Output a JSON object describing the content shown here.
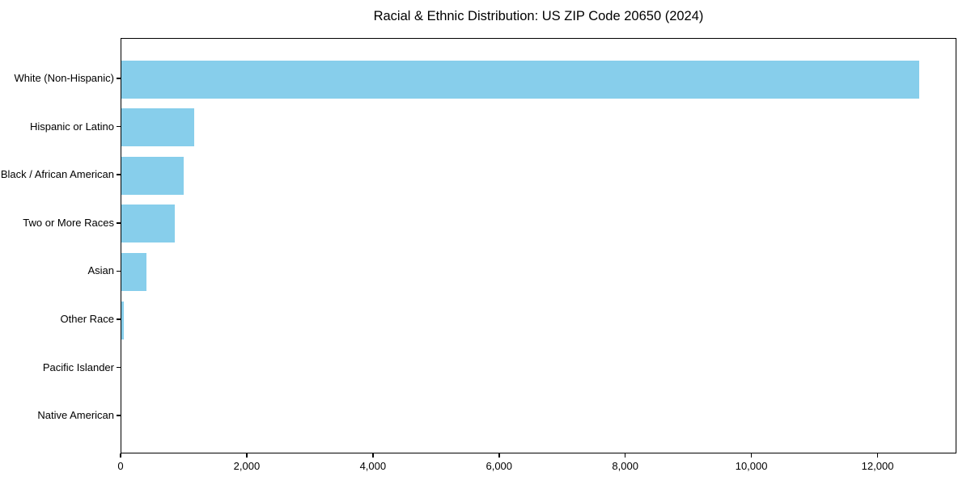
{
  "chart_data": {
    "type": "bar",
    "orientation": "horizontal",
    "title": "Racial & Ethnic Distribution: US ZIP Code 20650 (2024)",
    "xlabel": "",
    "ylabel": "",
    "categories": [
      "White (Non-Hispanic)",
      "Hispanic or Latino",
      "Black / African American",
      "Two or More Races",
      "Asian",
      "Other Race",
      "Pacific Islander",
      "Native American"
    ],
    "values": [
      12650,
      1150,
      990,
      845,
      395,
      40,
      0,
      0
    ],
    "xlim": [
      0,
      13250
    ],
    "x_ticks": [
      0,
      2000,
      4000,
      6000,
      8000,
      10000,
      12000
    ],
    "x_tick_labels": [
      "0",
      "2,000",
      "4,000",
      "6,000",
      "8,000",
      "10,000",
      "12,000"
    ],
    "bar_color": "#87CEEB",
    "axis_color": "#000000",
    "text_color": "#000000",
    "grid": false,
    "legend": null
  }
}
